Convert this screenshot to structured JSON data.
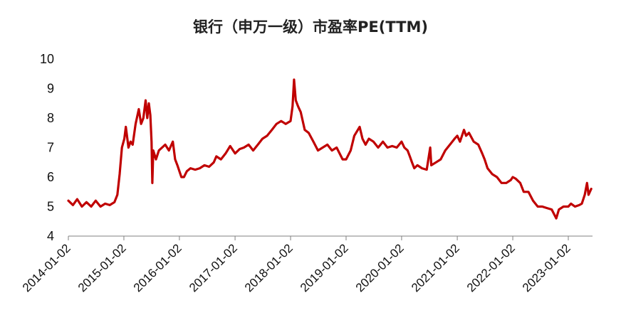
{
  "chart_data": {
    "type": "line",
    "title": "银行（申万一级）市盈率PE(TTM)",
    "xlabel": "",
    "ylabel": "",
    "ylim": [
      4,
      10
    ],
    "yticks": [
      "4",
      "5",
      "6",
      "7",
      "8",
      "9",
      "10"
    ],
    "xticks": [
      "2014-01-02",
      "2015-01-02",
      "2016-01-02",
      "2017-01-02",
      "2018-01-02",
      "2019-01-02",
      "2020-01-02",
      "2021-01-02",
      "2022-01-02",
      "2023-01-02"
    ],
    "xrange": [
      "2014-01-02",
      "2023-06-02"
    ],
    "grid": false,
    "legend": "none",
    "series": [
      {
        "color": "#c00000",
        "points": [
          [
            "2014-01-02",
            5.2
          ],
          [
            "2014-02-01",
            5.05
          ],
          [
            "2014-03-01",
            5.25
          ],
          [
            "2014-04-01",
            5.0
          ],
          [
            "2014-05-01",
            5.15
          ],
          [
            "2014-06-01",
            5.0
          ],
          [
            "2014-07-01",
            5.2
          ],
          [
            "2014-08-01",
            5.0
          ],
          [
            "2014-09-01",
            5.1
          ],
          [
            "2014-10-01",
            5.05
          ],
          [
            "2014-11-01",
            5.15
          ],
          [
            "2014-11-20",
            5.4
          ],
          [
            "2014-12-05",
            6.1
          ],
          [
            "2014-12-20",
            7.0
          ],
          [
            "2015-01-05",
            7.3
          ],
          [
            "2015-01-15",
            7.7
          ],
          [
            "2015-02-01",
            7.0
          ],
          [
            "2015-02-15",
            7.2
          ],
          [
            "2015-03-01",
            7.1
          ],
          [
            "2015-03-20",
            7.8
          ],
          [
            "2015-04-10",
            8.3
          ],
          [
            "2015-04-25",
            7.8
          ],
          [
            "2015-05-10",
            8.0
          ],
          [
            "2015-05-25",
            8.6
          ],
          [
            "2015-06-05",
            8.0
          ],
          [
            "2015-06-15",
            8.5
          ],
          [
            "2015-06-25",
            8.1
          ],
          [
            "2015-07-03",
            7.2
          ],
          [
            "2015-07-08",
            5.8
          ],
          [
            "2015-07-14",
            6.9
          ],
          [
            "2015-08-01",
            6.6
          ],
          [
            "2015-08-20",
            6.9
          ],
          [
            "2015-09-10",
            7.0
          ],
          [
            "2015-10-01",
            7.1
          ],
          [
            "2015-10-25",
            6.9
          ],
          [
            "2015-11-20",
            7.2
          ],
          [
            "2015-12-05",
            6.6
          ],
          [
            "2015-12-20",
            6.4
          ],
          [
            "2016-01-02",
            6.2
          ],
          [
            "2016-01-15",
            6.0
          ],
          [
            "2016-02-01",
            6.0
          ],
          [
            "2016-02-20",
            6.2
          ],
          [
            "2016-03-15",
            6.3
          ],
          [
            "2016-04-15",
            6.25
          ],
          [
            "2016-05-15",
            6.3
          ],
          [
            "2016-06-15",
            6.4
          ],
          [
            "2016-07-15",
            6.35
          ],
          [
            "2016-08-15",
            6.5
          ],
          [
            "2016-09-01",
            6.7
          ],
          [
            "2016-10-01",
            6.6
          ],
          [
            "2016-11-01",
            6.8
          ],
          [
            "2016-12-01",
            7.05
          ],
          [
            "2017-01-02",
            6.8
          ],
          [
            "2017-02-01",
            6.95
          ],
          [
            "2017-03-01",
            7.0
          ],
          [
            "2017-04-01",
            7.1
          ],
          [
            "2017-05-01",
            6.9
          ],
          [
            "2017-06-01",
            7.1
          ],
          [
            "2017-07-01",
            7.3
          ],
          [
            "2017-08-01",
            7.4
          ],
          [
            "2017-09-01",
            7.6
          ],
          [
            "2017-10-01",
            7.8
          ],
          [
            "2017-11-01",
            7.9
          ],
          [
            "2017-12-01",
            7.8
          ],
          [
            "2018-01-02",
            7.9
          ],
          [
            "2018-01-15",
            8.4
          ],
          [
            "2018-01-25",
            9.3
          ],
          [
            "2018-02-05",
            8.6
          ],
          [
            "2018-02-20",
            8.4
          ],
          [
            "2018-03-10",
            8.2
          ],
          [
            "2018-04-05",
            7.6
          ],
          [
            "2018-05-01",
            7.5
          ],
          [
            "2018-06-01",
            7.2
          ],
          [
            "2018-07-01",
            6.9
          ],
          [
            "2018-08-01",
            7.0
          ],
          [
            "2018-09-01",
            7.1
          ],
          [
            "2018-10-01",
            6.9
          ],
          [
            "2018-11-01",
            7.0
          ],
          [
            "2018-12-10",
            6.6
          ],
          [
            "2019-01-02",
            6.6
          ],
          [
            "2019-02-01",
            6.9
          ],
          [
            "2019-02-25",
            7.4
          ],
          [
            "2019-04-01",
            7.7
          ],
          [
            "2019-04-20",
            7.3
          ],
          [
            "2019-05-10",
            7.1
          ],
          [
            "2019-06-01",
            7.3
          ],
          [
            "2019-07-01",
            7.2
          ],
          [
            "2019-08-01",
            7.0
          ],
          [
            "2019-09-01",
            7.2
          ],
          [
            "2019-10-01",
            7.0
          ],
          [
            "2019-11-01",
            7.05
          ],
          [
            "2019-12-01",
            7.0
          ],
          [
            "2020-01-02",
            7.2
          ],
          [
            "2020-01-20",
            7.0
          ],
          [
            "2020-02-10",
            6.9
          ],
          [
            "2020-02-25",
            6.7
          ],
          [
            "2020-03-10",
            6.5
          ],
          [
            "2020-03-25",
            6.3
          ],
          [
            "2020-04-15",
            6.4
          ],
          [
            "2020-05-15",
            6.3
          ],
          [
            "2020-06-15",
            6.25
          ],
          [
            "2020-07-08",
            7.0
          ],
          [
            "2020-07-15",
            6.4
          ],
          [
            "2020-08-15",
            6.5
          ],
          [
            "2020-09-15",
            6.6
          ],
          [
            "2020-10-15",
            6.9
          ],
          [
            "2020-11-15",
            7.1
          ],
          [
            "2020-12-15",
            7.3
          ],
          [
            "2021-01-02",
            7.4
          ],
          [
            "2021-01-20",
            7.2
          ],
          [
            "2021-02-15",
            7.6
          ],
          [
            "2021-03-01",
            7.4
          ],
          [
            "2021-03-20",
            7.5
          ],
          [
            "2021-04-20",
            7.2
          ],
          [
            "2021-05-20",
            7.1
          ],
          [
            "2021-06-15",
            6.8
          ],
          [
            "2021-07-01",
            6.6
          ],
          [
            "2021-07-20",
            6.3
          ],
          [
            "2021-08-20",
            6.1
          ],
          [
            "2021-09-20",
            6.0
          ],
          [
            "2021-10-20",
            5.8
          ],
          [
            "2021-11-20",
            5.8
          ],
          [
            "2021-12-20",
            5.9
          ],
          [
            "2022-01-02",
            6.0
          ],
          [
            "2022-01-20",
            5.95
          ],
          [
            "2022-02-20",
            5.8
          ],
          [
            "2022-03-15",
            5.5
          ],
          [
            "2022-04-15",
            5.5
          ],
          [
            "2022-05-15",
            5.2
          ],
          [
            "2022-06-15",
            5.0
          ],
          [
            "2022-07-15",
            5.0
          ],
          [
            "2022-08-15",
            4.95
          ],
          [
            "2022-09-15",
            4.9
          ],
          [
            "2022-10-15",
            4.6
          ],
          [
            "2022-11-01",
            4.9
          ],
          [
            "2022-12-01",
            5.0
          ],
          [
            "2023-01-02",
            5.0
          ],
          [
            "2023-01-20",
            5.1
          ],
          [
            "2023-02-15",
            5.0
          ],
          [
            "2023-03-15",
            5.05
          ],
          [
            "2023-04-01",
            5.1
          ],
          [
            "2023-04-20",
            5.4
          ],
          [
            "2023-05-05",
            5.8
          ],
          [
            "2023-05-15",
            5.4
          ],
          [
            "2023-06-02",
            5.6
          ]
        ]
      }
    ]
  }
}
